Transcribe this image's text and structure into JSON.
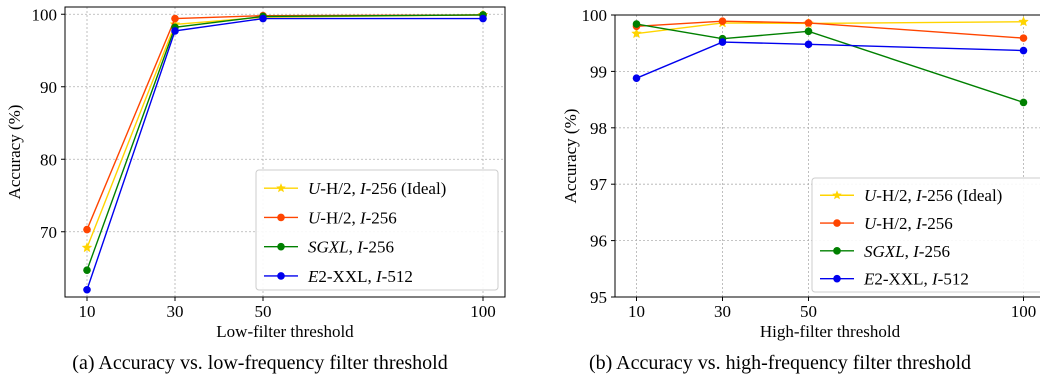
{
  "captions": {
    "a": "(a) Accuracy vs. low-frequency filter threshold",
    "b": "(b) Accuracy vs. high-frequency filter threshold"
  },
  "chart_data": [
    {
      "type": "line",
      "xlabel": "Low-filter threshold",
      "ylabel": "Accuracy (%)",
      "x": [
        10,
        30,
        50,
        100
      ],
      "xticks": [
        10,
        30,
        50,
        100
      ],
      "xlim": [
        5,
        105
      ],
      "ylim": [
        61,
        101
      ],
      "yticks": [
        70,
        80,
        90,
        100
      ],
      "grid": true,
      "legend_position": "lower-right",
      "series": [
        {
          "label_prefix": "U",
          "label_mid": "-H/2, ",
          "label_i": "I",
          "label_suffix": "-256 (Ideal)",
          "color": "#FFD400",
          "marker": "star",
          "values": [
            67.8,
            98.6,
            99.6,
            99.9
          ]
        },
        {
          "label_prefix": "U",
          "label_mid": "-H/2, ",
          "label_i": "I",
          "label_suffix": "-256",
          "color": "#FF4500",
          "marker": "circle",
          "values": [
            70.3,
            99.4,
            99.8,
            99.9
          ]
        },
        {
          "label_prefix": "SGXL",
          "label_mid": ", ",
          "label_i": "I",
          "label_suffix": "-256",
          "color": "#008000",
          "marker": "circle",
          "values": [
            64.7,
            98.2,
            99.7,
            99.9
          ]
        },
        {
          "label_prefix": "E",
          "label_mid": "2-XXL, ",
          "label_i": "I",
          "label_suffix": "-512",
          "color": "#0000EE",
          "marker": "circle",
          "values": [
            62.0,
            97.7,
            99.4,
            99.4
          ]
        }
      ]
    },
    {
      "type": "line",
      "xlabel": "High-filter threshold",
      "ylabel": "Accuracy (%)",
      "x": [
        10,
        30,
        50,
        100
      ],
      "xticks": [
        10,
        30,
        50,
        100
      ],
      "xlim": [
        5,
        105
      ],
      "ylim": [
        95,
        100
      ],
      "yticks": [
        95,
        96,
        97,
        98,
        99,
        100
      ],
      "grid": true,
      "legend_position": "lower-right",
      "series": [
        {
          "label_prefix": "U",
          "label_mid": "-H/2, ",
          "label_i": "I",
          "label_suffix": "-256 (Ideal)",
          "color": "#FFD400",
          "marker": "star",
          "values": [
            99.67,
            99.86,
            99.85,
            99.88
          ]
        },
        {
          "label_prefix": "U",
          "label_mid": "-H/2, ",
          "label_i": "I",
          "label_suffix": "-256",
          "color": "#FF4500",
          "marker": "circle",
          "values": [
            99.8,
            99.89,
            99.86,
            99.59
          ]
        },
        {
          "label_prefix": "SGXL",
          "label_mid": ", ",
          "label_i": "I",
          "label_suffix": "-256",
          "color": "#008000",
          "marker": "circle",
          "values": [
            99.84,
            99.58,
            99.71,
            98.45
          ]
        },
        {
          "label_prefix": "E",
          "label_mid": "2-XXL, ",
          "label_i": "I",
          "label_suffix": "-512",
          "color": "#0000EE",
          "marker": "circle",
          "values": [
            98.88,
            99.52,
            99.48,
            99.37
          ]
        }
      ]
    }
  ]
}
